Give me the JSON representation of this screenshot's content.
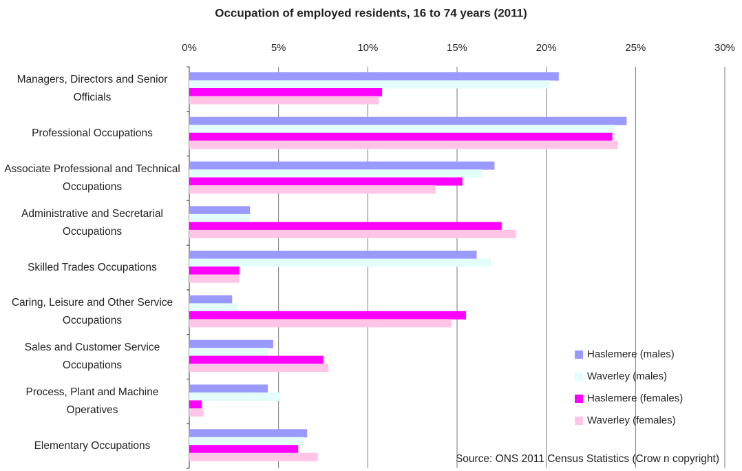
{
  "chart_data": {
    "type": "bar",
    "orientation": "horizontal",
    "title": "Occupation of employed residents, 16 to 74 years (2011)",
    "annotation": "Source: ONS 2011 Census Statistics (Crow n copyright)",
    "categories": [
      "Managers, Directors and Senior Officials",
      "Professional Occupations",
      "Associate Professional and Technical Occupations",
      "Administrative and Secretarial Occupations",
      "Skilled Trades Occupations",
      "Caring, Leisure and Other Service Occupations",
      "Sales and Customer Service Occupations",
      "Process, Plant and Machine Operatives",
      "Elementary Occupations"
    ],
    "series": [
      {
        "name": "Haslemere (males)",
        "color": "#9999ff",
        "values": [
          20.7,
          24.5,
          17.1,
          3.4,
          16.1,
          2.4,
          4.7,
          4.4,
          6.6
        ]
      },
      {
        "name": "Waverley (males)",
        "color": "#e3fcfc",
        "values": [
          20.2,
          23.8,
          16.4,
          3.4,
          16.9,
          2.7,
          4.4,
          5.1,
          6.4
        ]
      },
      {
        "name": "Haslemere (females)",
        "color": "#ff00ff",
        "values": [
          10.8,
          23.7,
          15.3,
          17.5,
          2.8,
          15.5,
          7.5,
          0.7,
          6.1
        ]
      },
      {
        "name": "Waverley (females)",
        "color": "#ffc4e6",
        "values": [
          10.6,
          24.0,
          13.8,
          18.3,
          2.8,
          14.7,
          7.8,
          0.8,
          7.2
        ]
      }
    ],
    "xlim": [
      0,
      30
    ],
    "xticks": [
      {
        "value": 0,
        "label": "0%"
      },
      {
        "value": 5,
        "label": "5%"
      },
      {
        "value": 10,
        "label": "10%"
      },
      {
        "value": 15,
        "label": "15%"
      },
      {
        "value": 20,
        "label": "20%"
      },
      {
        "value": 25,
        "label": "25%"
      },
      {
        "value": 30,
        "label": "30%"
      }
    ],
    "grid": true,
    "legend": "bottom-right"
  }
}
